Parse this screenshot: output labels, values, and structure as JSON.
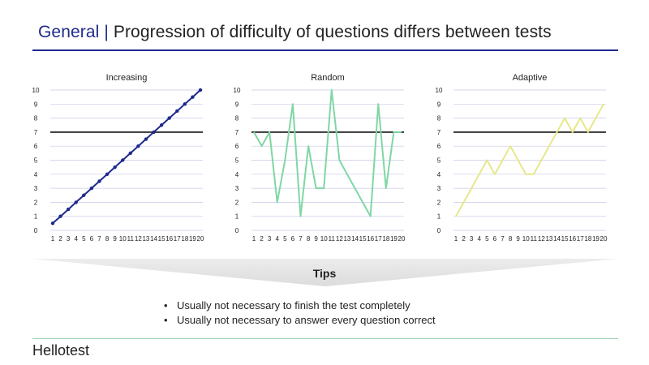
{
  "header": {
    "category": "General",
    "separator": "|",
    "title": "Progression of difficulty of questions differs between tests"
  },
  "chart_data": [
    {
      "type": "line",
      "title": "Increasing",
      "x": [
        1,
        2,
        3,
        4,
        5,
        6,
        7,
        8,
        9,
        10,
        11,
        12,
        13,
        14,
        15,
        16,
        17,
        18,
        19,
        20
      ],
      "series": [
        {
          "values": [
            0.5,
            1,
            1.5,
            2,
            2.5,
            3,
            3.5,
            4,
            4.5,
            5,
            5.5,
            6,
            6.5,
            7,
            7.5,
            8,
            8.5,
            9,
            9.5,
            10
          ],
          "color": "#1f2a8c",
          "markers": true
        }
      ],
      "threshold": 7,
      "ylim": [
        0,
        10
      ],
      "yticks": [
        0,
        1,
        2,
        3,
        4,
        5,
        6,
        7,
        8,
        9,
        10
      ],
      "grid": true
    },
    {
      "type": "line",
      "title": "Random",
      "x": [
        1,
        2,
        3,
        4,
        5,
        6,
        7,
        8,
        9,
        10,
        11,
        12,
        13,
        14,
        15,
        16,
        17,
        18,
        19,
        20
      ],
      "series": [
        {
          "values": [
            7,
            6,
            7,
            2,
            5,
            9,
            1,
            6,
            3,
            3,
            10,
            5,
            4,
            3,
            2,
            1,
            9,
            3,
            7,
            7
          ],
          "color": "#7fd7a4",
          "markers": false
        }
      ],
      "threshold": 7,
      "ylim": [
        0,
        10
      ],
      "yticks": [
        0,
        1,
        2,
        3,
        4,
        5,
        6,
        7,
        8,
        9,
        10
      ],
      "grid": true
    },
    {
      "type": "line",
      "title": "Adaptive",
      "x": [
        1,
        2,
        3,
        4,
        5,
        6,
        7,
        8,
        9,
        10,
        11,
        12,
        13,
        14,
        15,
        16,
        17,
        18,
        19,
        20
      ],
      "series": [
        {
          "values": [
            1,
            2,
            3,
            4,
            5,
            4,
            5,
            6,
            5,
            4,
            4,
            5,
            6,
            7,
            8,
            7,
            8,
            7,
            8,
            9
          ],
          "color": "#e6e88a",
          "markers": false
        }
      ],
      "threshold": 7,
      "ylim": [
        0,
        10
      ],
      "yticks": [
        0,
        1,
        2,
        3,
        4,
        5,
        6,
        7,
        8,
        9,
        10
      ],
      "grid": true
    }
  ],
  "tips": {
    "title": "Tips",
    "bullet": "•",
    "items": [
      "Usually not necessary to finish the test completely",
      "Usually not necessary to answer every question correct"
    ]
  },
  "footer": {
    "logo": "Hellotest",
    "logo_mark": "..."
  },
  "colors": {
    "accent": "#1f2a8c",
    "threshold": "#111111",
    "grid": "#c9c9e6",
    "banner": "#e8e8e8",
    "footer_rule": "#9fd3b3"
  }
}
